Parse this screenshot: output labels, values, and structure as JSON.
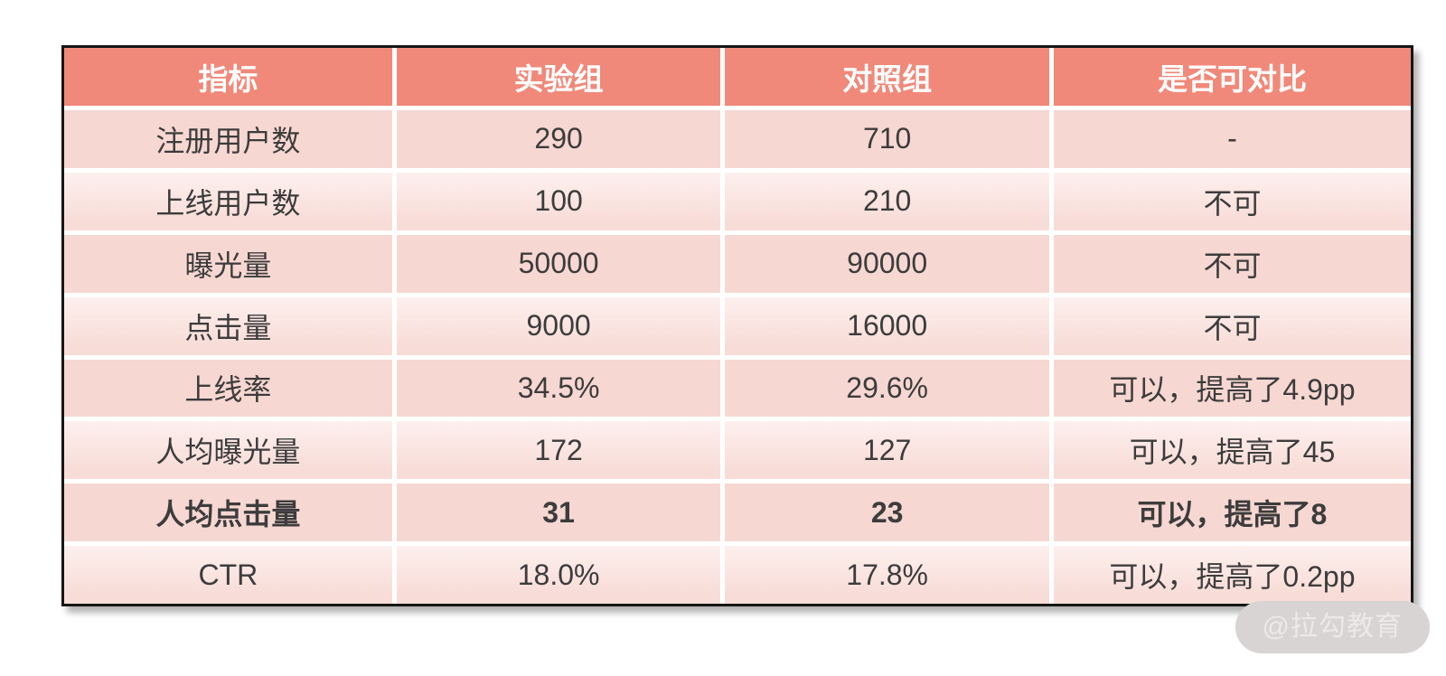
{
  "chart_data": {
    "type": "table",
    "columns": [
      "指标",
      "实验组",
      "对照组",
      "是否可对比"
    ],
    "rows": [
      {
        "cells": [
          "注册用户数",
          "290",
          "710",
          "-"
        ],
        "bold": false
      },
      {
        "cells": [
          "上线用户数",
          "100",
          "210",
          "不可"
        ],
        "bold": false
      },
      {
        "cells": [
          "曝光量",
          "50000",
          "90000",
          "不可"
        ],
        "bold": false
      },
      {
        "cells": [
          "点击量",
          "9000",
          "16000",
          "不可"
        ],
        "bold": false
      },
      {
        "cells": [
          "上线率",
          "34.5%",
          "29.6%",
          "可以，提高了4.9pp"
        ],
        "bold": false
      },
      {
        "cells": [
          "人均曝光量",
          "172",
          "127",
          "可以，提高了45"
        ],
        "bold": false
      },
      {
        "cells": [
          "人均点击量",
          "31",
          "23",
          "可以，提高了8"
        ],
        "bold": true
      },
      {
        "cells": [
          "CTR",
          "18.0%",
          "17.8%",
          "可以，提高了0.2pp"
        ],
        "bold": false
      }
    ]
  },
  "watermark": {
    "text": "@拉勾教育"
  },
  "colors": {
    "header_bg": "#f0897a",
    "header_text": "#ffffff",
    "row_dark": "#f7d7d2",
    "row_light_top": "#fdf0ee",
    "row_light_bottom": "#f8dcd7",
    "cell_text": "#3c3c3c",
    "table_border": "#161616",
    "watermark_bg": "#d7d4d3",
    "watermark_text": "#eceae9"
  }
}
